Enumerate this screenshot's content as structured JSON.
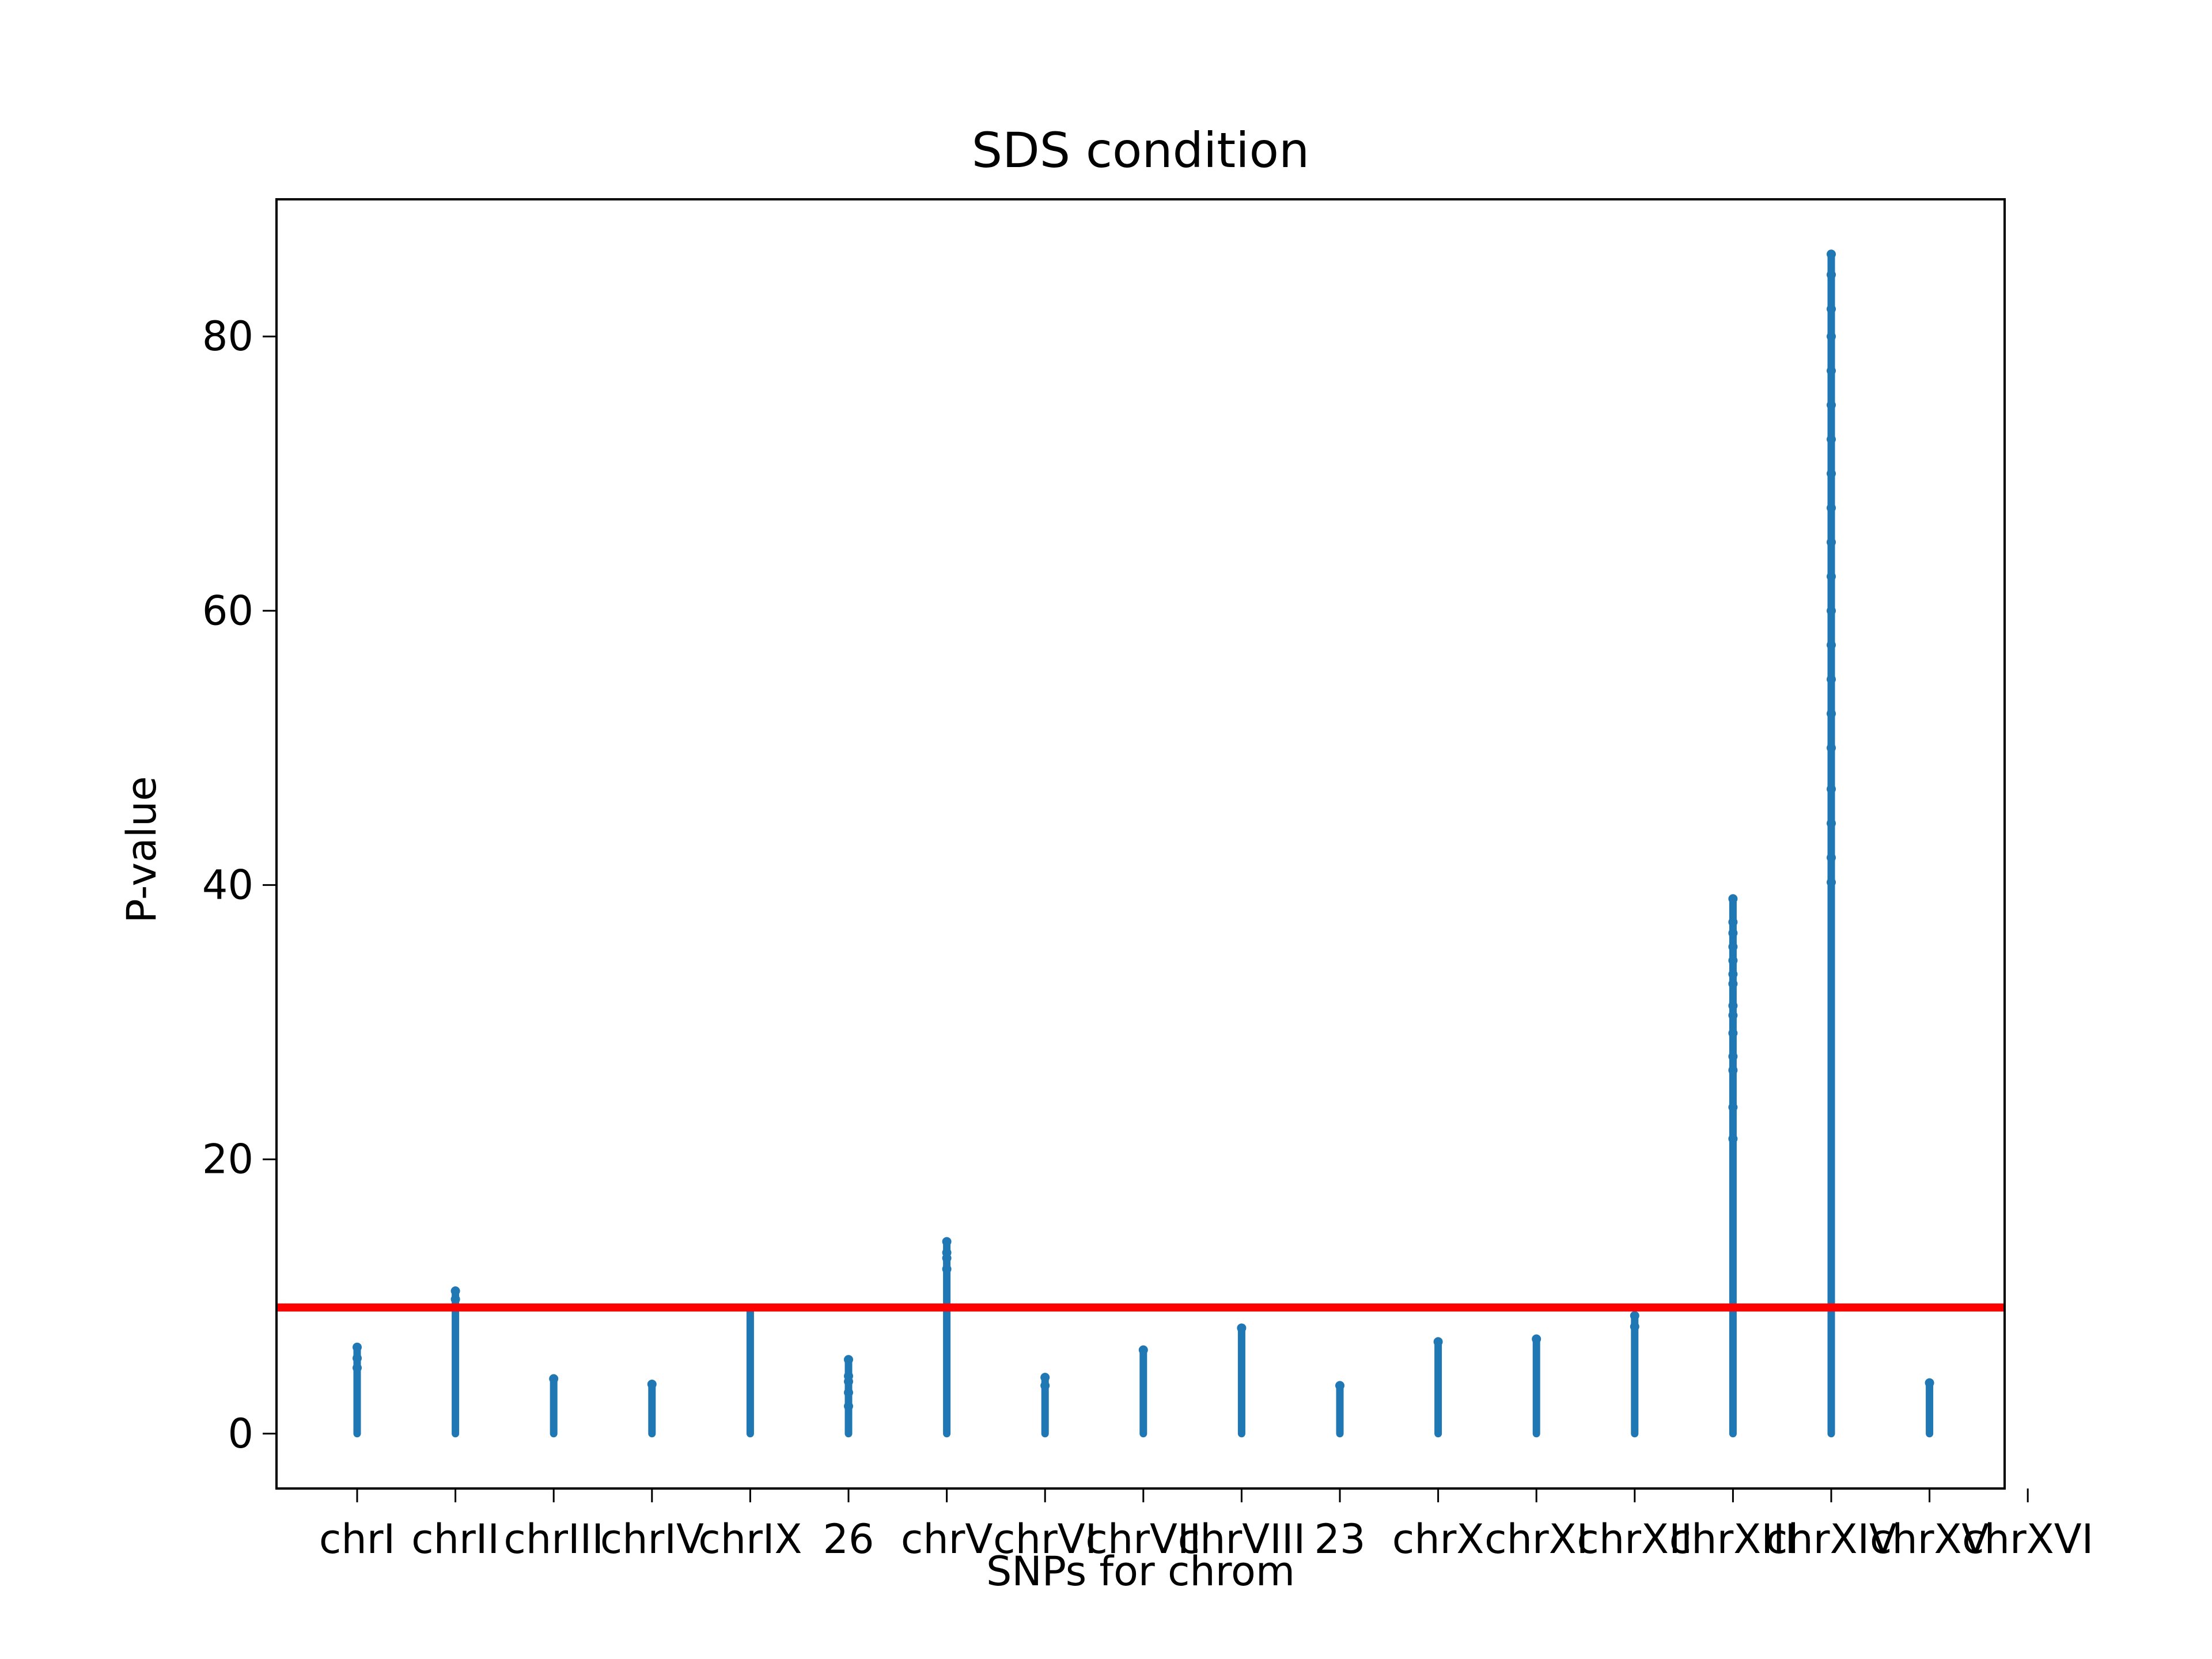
{
  "chart_data": {
    "type": "scatter",
    "title": "SDS condition",
    "xlabel": "SNPs for chrom",
    "ylabel": "P-value",
    "ylim": [
      -4,
      90
    ],
    "yticks": [
      0,
      20,
      40,
      60,
      80
    ],
    "grid": false,
    "categories": [
      "chrI",
      "chrII",
      "chrIII",
      "chrIV",
      "chrIX",
      "26",
      "chrV",
      "chrVI",
      "chrVII",
      "chrVIII",
      "23",
      "chrX",
      "chrXI",
      "chrXII",
      "chrXIII",
      "chrXIV",
      "chrXV",
      "chrXVI"
    ],
    "threshold": {
      "value": 9.2,
      "color": "#ff0000"
    },
    "point_color": "#1f77b4",
    "series": [
      {
        "category": "chrI",
        "max": 6.3,
        "extra": [
          4.8,
          5.5,
          6.3
        ]
      },
      {
        "category": "chrII",
        "max": 10.4,
        "extra": [
          9.8,
          10.4
        ]
      },
      {
        "category": "chrIII",
        "max": 4.0,
        "extra": [
          4.0
        ]
      },
      {
        "category": "chrIV",
        "max": 3.6,
        "extra": [
          3.6
        ]
      },
      {
        "category": "chrIX",
        "max": 9.1,
        "extra": [
          9.1
        ]
      },
      {
        "category": "26",
        "max": 5.4,
        "extra": [
          2.0,
          3.0,
          3.8,
          4.2,
          5.4
        ]
      },
      {
        "category": "chrV",
        "max": 14.0,
        "extra": [
          12.0,
          12.8,
          13.2,
          14.0
        ]
      },
      {
        "category": "chrVI",
        "max": 4.1,
        "extra": [
          3.5,
          4.1
        ]
      },
      {
        "category": "chrVII",
        "max": 6.1,
        "extra": [
          6.1
        ]
      },
      {
        "category": "chrVIII",
        "max": 7.7,
        "extra": [
          7.7
        ]
      },
      {
        "category": "23",
        "max": 3.5,
        "extra": [
          3.5
        ]
      },
      {
        "category": "chrX",
        "max": 6.7,
        "extra": [
          6.7
        ]
      },
      {
        "category": "chrXI",
        "max": 6.9,
        "extra": [
          6.9
        ]
      },
      {
        "category": "chrXII",
        "max": 8.6,
        "extra": [
          7.8,
          8.6
        ]
      },
      {
        "category": "chrXIII",
        "max": 39.0,
        "extra": [
          21.5,
          23.8,
          26.5,
          27.5,
          29.2,
          30.5,
          31.2,
          32.8,
          33.5,
          34.5,
          35.5,
          36.5,
          37.3,
          39.0
        ]
      },
      {
        "category": "chrXIV",
        "max": 86.0,
        "extra": [
          40.2,
          42.0,
          44.5,
          47.0,
          50.0,
          52.5,
          55.0,
          57.5,
          60.0,
          62.5,
          65.0,
          67.5,
          70.0,
          72.5,
          75.0,
          77.5,
          80.0,
          82.0,
          84.5,
          86.0
        ]
      },
      {
        "category": "chrXV",
        "max": 3.7,
        "extra": [
          3.7
        ]
      }
    ]
  }
}
